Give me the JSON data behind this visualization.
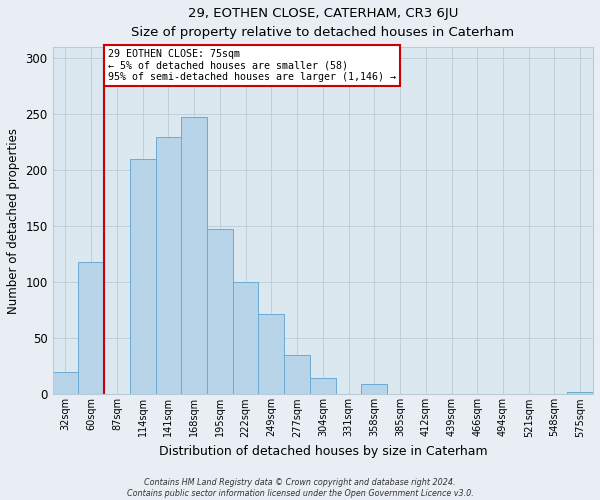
{
  "title": "29, EOTHEN CLOSE, CATERHAM, CR3 6JU",
  "subtitle": "Size of property relative to detached houses in Caterham",
  "xlabel": "Distribution of detached houses by size in Caterham",
  "ylabel": "Number of detached properties",
  "bar_labels": [
    "32sqm",
    "60sqm",
    "87sqm",
    "114sqm",
    "141sqm",
    "168sqm",
    "195sqm",
    "222sqm",
    "249sqm",
    "277sqm",
    "304sqm",
    "331sqm",
    "358sqm",
    "385sqm",
    "412sqm",
    "439sqm",
    "466sqm",
    "494sqm",
    "521sqm",
    "548sqm",
    "575sqm"
  ],
  "bar_values": [
    20,
    118,
    0,
    210,
    230,
    248,
    148,
    100,
    72,
    35,
    15,
    0,
    9,
    0,
    0,
    0,
    0,
    0,
    0,
    0,
    2
  ],
  "bar_color": "#b8d4e8",
  "bar_edge_color": "#6aaad4",
  "ylim": [
    0,
    310
  ],
  "yticks": [
    0,
    50,
    100,
    150,
    200,
    250,
    300
  ],
  "marker_label_line1": "29 EOTHEN CLOSE: 75sqm",
  "marker_label_line2": "← 5% of detached houses are smaller (58)",
  "marker_label_line3": "95% of semi-detached houses are larger (1,146) →",
  "marker_color": "#cc0000",
  "footer_line1": "Contains HM Land Registry data © Crown copyright and database right 2024.",
  "footer_line2": "Contains public sector information licensed under the Open Government Licence v3.0.",
  "background_color": "#e8eef4",
  "plot_background_color": "#dce8f0"
}
